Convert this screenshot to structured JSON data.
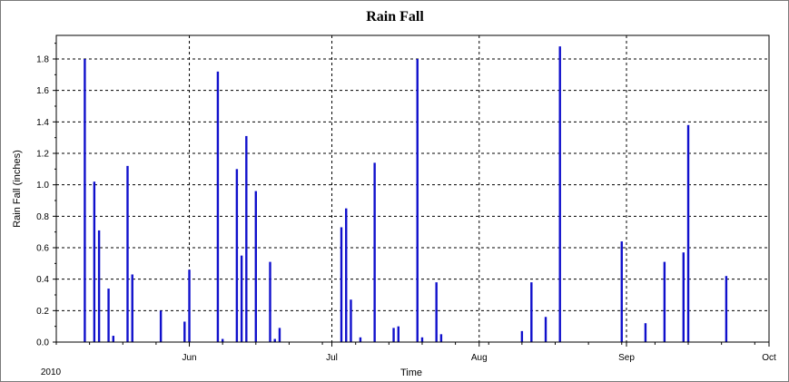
{
  "chart_data": {
    "type": "bar",
    "title": "Rain Fall",
    "xlabel": "Time",
    "ylabel": "Rain Fall (inches)",
    "year_label": "2010",
    "x_start": "2010-05-04",
    "x_end": "2010-10-01",
    "xlim": [
      "2010-05-04",
      "2010-10-01"
    ],
    "ylim": [
      0,
      1.95
    ],
    "y_ticks": [
      "0.0",
      "0.2",
      "0.4",
      "0.6",
      "0.8",
      "1.0",
      "1.2",
      "1.4",
      "1.6",
      "1.8"
    ],
    "x_ticks": [
      {
        "date": "2010-06-01",
        "label": "Jun"
      },
      {
        "date": "2010-07-01",
        "label": "Jul"
      },
      {
        "date": "2010-08-01",
        "label": "Aug"
      },
      {
        "date": "2010-09-01",
        "label": "Sep"
      },
      {
        "date": "2010-10-01",
        "label": "Oct"
      }
    ],
    "grid": true,
    "series": [
      {
        "color": "#1010cc",
        "points": [
          {
            "date": "2010-05-10",
            "value": 1.8
          },
          {
            "date": "2010-05-12",
            "value": 1.02
          },
          {
            "date": "2010-05-13",
            "value": 0.71
          },
          {
            "date": "2010-05-15",
            "value": 0.34
          },
          {
            "date": "2010-05-16",
            "value": 0.04
          },
          {
            "date": "2010-05-19",
            "value": 1.12
          },
          {
            "date": "2010-05-20",
            "value": 0.43
          },
          {
            "date": "2010-05-26",
            "value": 0.2
          },
          {
            "date": "2010-05-31",
            "value": 0.13
          },
          {
            "date": "2010-06-01",
            "value": 0.46
          },
          {
            "date": "2010-06-07",
            "value": 1.72
          },
          {
            "date": "2010-06-08",
            "value": 0.02
          },
          {
            "date": "2010-06-11",
            "value": 1.1
          },
          {
            "date": "2010-06-12",
            "value": 0.55
          },
          {
            "date": "2010-06-13",
            "value": 1.31
          },
          {
            "date": "2010-06-15",
            "value": 0.96
          },
          {
            "date": "2010-06-18",
            "value": 0.51
          },
          {
            "date": "2010-06-19",
            "value": 0.02
          },
          {
            "date": "2010-06-20",
            "value": 0.09
          },
          {
            "date": "2010-07-03",
            "value": 0.73
          },
          {
            "date": "2010-07-04",
            "value": 0.85
          },
          {
            "date": "2010-07-05",
            "value": 0.27
          },
          {
            "date": "2010-07-07",
            "value": 0.03
          },
          {
            "date": "2010-07-10",
            "value": 1.14
          },
          {
            "date": "2010-07-14",
            "value": 0.09
          },
          {
            "date": "2010-07-15",
            "value": 0.1
          },
          {
            "date": "2010-07-19",
            "value": 1.8
          },
          {
            "date": "2010-07-20",
            "value": 0.03
          },
          {
            "date": "2010-07-23",
            "value": 0.38
          },
          {
            "date": "2010-07-24",
            "value": 0.05
          },
          {
            "date": "2010-08-10",
            "value": 0.07
          },
          {
            "date": "2010-08-12",
            "value": 0.38
          },
          {
            "date": "2010-08-15",
            "value": 0.16
          },
          {
            "date": "2010-08-18",
            "value": 1.88
          },
          {
            "date": "2010-08-31",
            "value": 0.64
          },
          {
            "date": "2010-09-05",
            "value": 0.12
          },
          {
            "date": "2010-09-09",
            "value": 0.51
          },
          {
            "date": "2010-09-13",
            "value": 0.57
          },
          {
            "date": "2010-09-14",
            "value": 1.38
          },
          {
            "date": "2010-09-22",
            "value": 0.42
          }
        ]
      }
    ]
  }
}
